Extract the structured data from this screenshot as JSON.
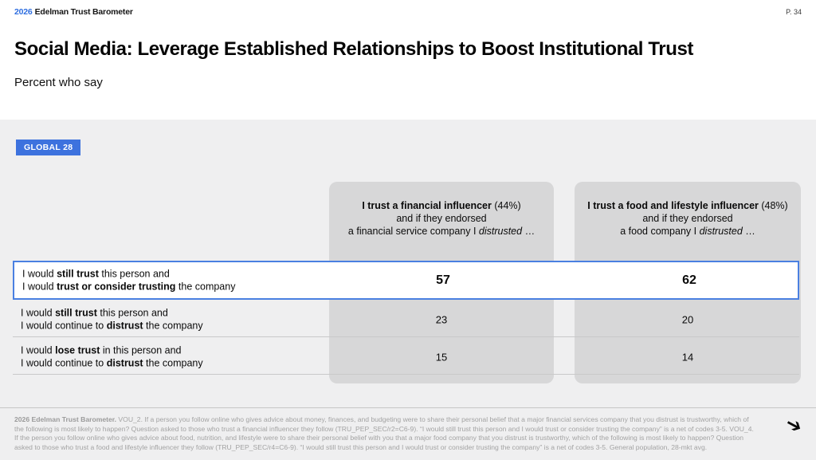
{
  "header": {
    "year": "2026",
    "brand": "Edelman Trust Barometer",
    "page": "P. 34"
  },
  "title": "Social Media: Leverage Established Relationships to Boost Institutional Trust",
  "subtitle": "Percent who say",
  "badge": {
    "label": "GLOBAL 28",
    "color": "#3d72de"
  },
  "table": {
    "columns": [
      {
        "title_bold": "I trust a financial influencer",
        "title_rest": " (44%)",
        "line2": "and if they endorsed",
        "line3_pre": "a financial service company I ",
        "line3_italic": "distrusted",
        "line3_post": " …"
      },
      {
        "title_bold": "I trust a food and lifestyle influencer",
        "title_rest": " (48%)",
        "line2": "and if they endorsed",
        "line3_pre": "a food company I ",
        "line3_italic": "distrusted",
        "line3_post": " …"
      }
    ],
    "rows": [
      {
        "line1": {
          "pre": "I would ",
          "bold": "still trust",
          "post": " this person and"
        },
        "line2": {
          "pre": "I would ",
          "bold": "trust or consider trusting",
          "post": " the company"
        },
        "values": [
          "57",
          "62"
        ]
      },
      {
        "line1": {
          "pre": "I would ",
          "bold": "still trust",
          "post": " this person and"
        },
        "line2": {
          "pre": "I would continue to ",
          "bold": "distrust",
          "post": " the company"
        },
        "values": [
          "23",
          "20"
        ]
      },
      {
        "line1": {
          "pre": "I would ",
          "bold": "lose trust",
          "post": " in this person and"
        },
        "line2": {
          "pre": "I would continue to ",
          "bold": "distrust",
          "post": " the company"
        },
        "values": [
          "15",
          "14"
        ]
      }
    ]
  },
  "chart_data": {
    "type": "table",
    "title": "Social Media: Leverage Established Relationships to Boost Institutional Trust",
    "subtitle": "Percent who say",
    "scope": "GLOBAL 28",
    "columns": [
      "I trust a financial influencer (44%) and if they endorsed a financial service company I distrusted …",
      "I trust a food and lifestyle influencer (48%) and if they endorsed a food company I distrusted …"
    ],
    "rows": [
      {
        "label": "I would still trust this person and I would trust or consider trusting the company",
        "values": [
          57,
          62
        ],
        "highlighted": true
      },
      {
        "label": "I would still trust this person and I would continue to distrust the company",
        "values": [
          23,
          20
        ],
        "highlighted": false
      },
      {
        "label": "I would lose trust in this person and I would continue to distrust the company",
        "values": [
          15,
          14
        ],
        "highlighted": false
      }
    ]
  },
  "footnote": {
    "bold": "2026 Edelman Trust Barometer.",
    "text": " VOU_2. If a person you follow online who gives advice about money, finances, and budgeting were to share their personal belief that a major financial services company that you distrust is trustworthy, which of the following is most likely to happen? Question asked to those who trust a financial influencer they follow (TRU_PEP_SEC/r2=C6-9). “I would still trust this person and I would trust or consider trusting the company” is a net of codes 3-5. VOU_4. If the person you follow online who gives advice about food, nutrition, and lifestyle were to share their personal belief with you that a major food company that you distrust is trustworthy, which of the following is most likely to happen? Question asked to those who trust a food and lifestyle influencer they follow (TRU_PEP_SEC/r4=C6-9). “I would still trust this person and I would trust or consider trusting the company” is a net of codes 3-5. General population, 28-mkt avg."
  },
  "icons": {
    "next_arrow": "➔"
  }
}
